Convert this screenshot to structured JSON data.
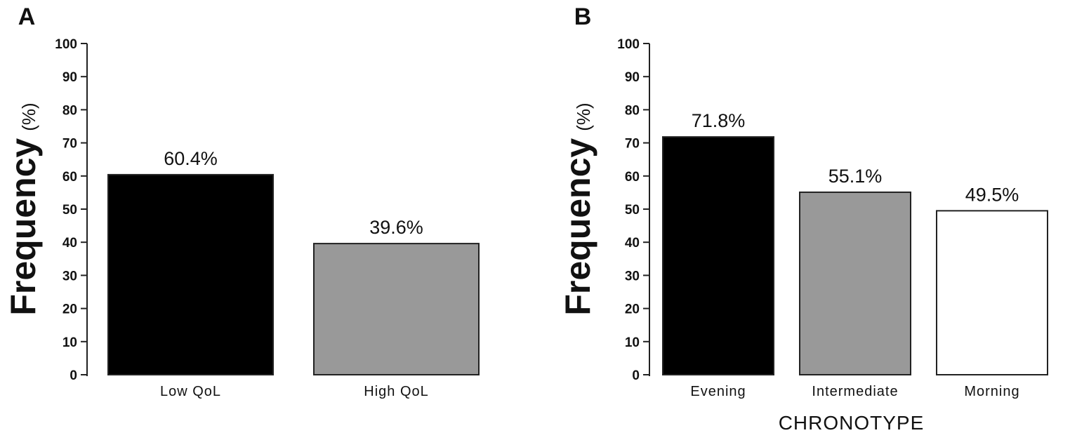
{
  "chart_data": [
    {
      "panel": "A",
      "type": "bar",
      "categories": [
        "Low QoL",
        "High QoL"
      ],
      "values": [
        60.4,
        39.6
      ],
      "data_labels": [
        "60.4%",
        "39.6%"
      ],
      "colors": [
        "#000000",
        "#999999"
      ],
      "ylabel": "Frequency",
      "ylabel_unit": "(%)",
      "xlabel": "",
      "ylim": [
        0,
        100
      ],
      "yticks": [
        0,
        10,
        20,
        30,
        40,
        50,
        60,
        70,
        80,
        90,
        100
      ],
      "grid": false
    },
    {
      "panel": "B",
      "type": "bar",
      "categories": [
        "Evening",
        "Intermediate",
        "Morning"
      ],
      "values": [
        71.8,
        55.1,
        49.5
      ],
      "data_labels": [
        "71.8%",
        "55.1%",
        "49.5%"
      ],
      "colors": [
        "#000000",
        "#999999",
        "#ffffff"
      ],
      "ylabel": "Frequency",
      "ylabel_unit": "(%)",
      "xlabel": "CHRONOTYPE",
      "ylim": [
        0,
        100
      ],
      "yticks": [
        0,
        10,
        20,
        30,
        40,
        50,
        60,
        70,
        80,
        90,
        100
      ],
      "grid": false
    }
  ]
}
